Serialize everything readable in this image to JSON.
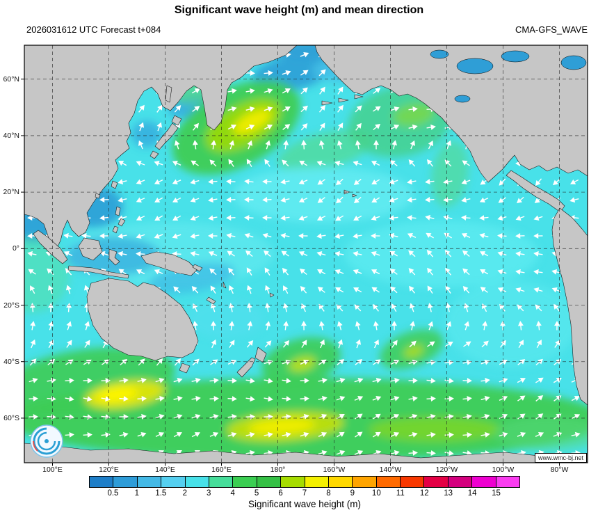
{
  "header": {
    "title": "Significant wave height (m) and mean direction",
    "forecast": "2026031612 UTC Forecast t+084",
    "model": "CMA-GFS_WAVE"
  },
  "map": {
    "watermark": "www.wmc-bj.net",
    "ocean_color": "#48E1E9",
    "land_color": "#C6C6C6",
    "coast_color": "#1a1a1a",
    "grid_color": "#222222",
    "arrow_color": "#ffffff",
    "arrow_spacing": 26,
    "lat_labels": [
      {
        "text": "60°N",
        "lat": 60
      },
      {
        "text": "40°N",
        "lat": 40
      },
      {
        "text": "20°N",
        "lat": 20
      },
      {
        "text": "0°",
        "lat": 0
      },
      {
        "text": "20°S",
        "lat": -20
      },
      {
        "text": "40°S",
        "lat": -40
      },
      {
        "text": "60°S",
        "lat": -60
      }
    ],
    "lon_labels": [
      {
        "text": "100°E",
        "lon": 100
      },
      {
        "text": "120°E",
        "lon": 120
      },
      {
        "text": "140°E",
        "lon": 140
      },
      {
        "text": "160°E",
        "lon": 160
      },
      {
        "text": "180°",
        "lon": 180
      },
      {
        "text": "160°W",
        "lon": 200
      },
      {
        "text": "140°W",
        "lon": 220
      },
      {
        "text": "120°W",
        "lon": 240
      },
      {
        "text": "100°W",
        "lon": 260
      },
      {
        "text": "80°W",
        "lon": 280
      }
    ],
    "field_blobs": [
      [
        420,
        6,
        95,
        13,
        0,
        "#2f9ed6",
        0.95
      ],
      [
        385,
        40,
        58,
        24,
        -10,
        "#2f9ed6",
        0.9
      ],
      [
        458,
        36,
        44,
        18,
        0,
        "#45c2e8",
        0.85
      ],
      [
        240,
        86,
        34,
        17,
        -15,
        "#35aadd",
        0.85
      ],
      [
        176,
        128,
        22,
        19,
        0,
        "#35aadd",
        0.8
      ],
      [
        100,
        232,
        42,
        30,
        0,
        "#2f9ed6",
        0.9
      ],
      [
        14,
        258,
        32,
        26,
        0,
        "#2f9ed6",
        0.9
      ],
      [
        305,
        118,
        100,
        56,
        -28,
        "#3ecc55",
        0.95
      ],
      [
        315,
        115,
        60,
        30,
        -28,
        "#a8dc00",
        0.8
      ],
      [
        328,
        110,
        30,
        13,
        -28,
        "#f4ee00",
        0.9
      ],
      [
        255,
        62,
        42,
        18,
        -20,
        "#57d878",
        0.65
      ],
      [
        432,
        152,
        70,
        26,
        -15,
        "#57d878",
        0.55
      ],
      [
        540,
        110,
        75,
        50,
        -10,
        "#44cf88",
        0.8
      ],
      [
        560,
        100,
        30,
        16,
        -10,
        "#a8dc00",
        0.45
      ],
      [
        612,
        185,
        26,
        48,
        8,
        "#57d878",
        0.5
      ],
      [
        430,
        215,
        130,
        40,
        0,
        "#63ebf1",
        0.85
      ],
      [
        210,
        300,
        150,
        46,
        0,
        "#5fe9ee",
        0.8
      ],
      [
        128,
        303,
        68,
        28,
        0,
        "#38b0de",
        0.8
      ],
      [
        240,
        335,
        64,
        20,
        -10,
        "#3db9e4",
        0.7
      ],
      [
        600,
        300,
        140,
        48,
        0,
        "#5debf0",
        0.75
      ],
      [
        700,
        400,
        95,
        62,
        0,
        "#58e8ee",
        0.7
      ],
      [
        290,
        393,
        55,
        28,
        0,
        "#52dfee",
        0.6
      ],
      [
        10,
        330,
        55,
        55,
        0,
        "#52dfa0",
        0.5
      ],
      [
        398,
        455,
        58,
        33,
        -15,
        "#3ecc55",
        0.9
      ],
      [
        400,
        458,
        20,
        10,
        -15,
        "#d8e400",
        0.75
      ],
      [
        557,
        437,
        48,
        25,
        -20,
        "#3ecc55",
        0.85
      ],
      [
        560,
        440,
        15,
        8,
        -20,
        "#cfe000",
        0.7
      ],
      [
        405,
        538,
        430,
        60,
        0,
        "#3ecc55",
        0.95
      ],
      [
        90,
        483,
        128,
        46,
        -8,
        "#3ecc55",
        0.9
      ],
      [
        145,
        502,
        58,
        19,
        -8,
        "#e8e600",
        0.9
      ],
      [
        133,
        502,
        30,
        10,
        -8,
        "#fff500",
        0.95
      ],
      [
        375,
        548,
        85,
        21,
        -4,
        "#cfe000",
        0.85
      ],
      [
        370,
        548,
        48,
        11,
        -4,
        "#f4ee00",
        0.9
      ],
      [
        590,
        552,
        95,
        18,
        0,
        "#a8dc00",
        0.5
      ],
      [
        755,
        558,
        80,
        24,
        0,
        "#57d878",
        0.55
      ]
    ],
    "land_paths": [
      "M0,0 L392,0 L376,14 L352,24 L330,30 L312,46 L298,54 L292,64 L289,88 L283,110 L273,122 L263,115 L259,90 L254,64 L244,58 L233,66 L221,82 L210,94 L199,88 L192,70 L183,60 L172,66 L163,80 L158,98 L150,112 L153,126 L147,138 L151,148 L140,157 L131,165 L135,177 L127,191 L113,207 L100,225 L90,241 L94,255 L88,269 L78,275 L68,265 L62,251 L56,265 L52,281 L46,293 L38,287 L33,271 L28,257 L18,249 L8,245 L0,243 Z",
      "M205,58 L212,61 L209,82 L203,79 Z",
      "M216,101 L226,106 L221,115 L212,110 Z",
      "M213,112 L221,119 L212,131 L202,141 L194,150 L188,145 L197,133 L207,121 Z",
      "M185,152 L193,156 L187,163 L181,159 Z",
      "M127,195 L134,198 L131,206 L125,203 Z",
      "M103,213 L109,215 L107,220 L102,218 Z",
      "M133,232 L138,234 L136,245 L131,243 Z",
      "M139,249 L145,252 L140,260 L135,257 Z",
      "M130,260 L135,262 L132,270 L127,267 Z",
      "M86,277 L107,281 L112,297 L99,309 L84,303 L78,289 Z",
      "M20,266 L34,276 L52,292 L62,308 L55,314 L38,300 L22,284 L13,271 Z",
      "M64,317 L98,320 L124,326 L150,330 L149,335 L122,331 L96,326 L63,323 Z",
      "M122,293 L133,297 L130,305 L137,311 L131,316 L122,307 Z",
      "M168,303 L190,297 L214,301 L236,311 L248,323 L240,331 L219,327 L195,319 L175,313 Z",
      "M96,342 L122,335 L150,339 L163,347 L171,341 L187,345 L205,357 L225,373 L237,391 L245,409 L250,425 L243,441 L227,449 L206,447 L188,453 L169,447 L149,445 L128,435 L111,421 L99,403 L92,381 L90,361 Z",
      "M227,457 L238,461 L233,471 L223,467 Z",
      "M336,434 L348,443 L343,456 L332,449 Z",
      "M332,451 L327,462 L313,477 L306,470 L319,457 L327,449 Z",
      "M418,0 L810,0 L810,188 L796,179 L782,184 L766,175 L752,181 L740,173 L726,179 L713,171 L705,158 L697,167 L688,178 L677,188 L667,197 L656,183 L648,168 L641,152 L632,140 L622,128 L611,117 L600,104 L588,94 L576,84 L564,76 L551,70 L539,73 L527,64 L513,58 L499,63 L486,71 L473,67 L461,56 L449,44 L439,33 L428,21 L421,10 Z",
      "M428,80 L443,83 L428,86 Z",
      "M452,76 L466,79 L452,82 Z",
      "M475,71 L487,74 L475,77 Z",
      "M700,180 L716,190 L734,202 L752,212 L768,222 L777,231 L771,240 L754,228 L736,218 L718,206 L703,194 L693,187 Z",
      "M770,234 L788,248 L802,264 L810,274 L810,517 L800,509 L794,489 L790,463 L788,431 L786,401 L781,371 L775,341 L767,311 L761,287 L759,265 L762,248 Z",
      "M0,572 L45,576 L95,582 L150,580 L215,587 L270,583 L330,589 L390,585 L450,591 L510,587 L570,593 L630,589 L690,585 L750,591 L810,587 L810,600 L0,600 Z",
      "M460,208 L468,211 L460,214 Z",
      "M472,214 L478,216 L472,218 Z",
      "M353,356 L359,359 L354,362 Z",
      "M265,362 L275,368 L272,372 L262,366 Z",
      "M245,315 L256,320 L252,325 L242,319 Z",
      "M286,340 L290,349 L286,347 Z"
    ],
    "water_patches": [
      [
        648,
        30,
        26,
        11
      ],
      [
        706,
        16,
        20,
        8
      ],
      [
        597,
        13,
        13,
        6
      ],
      [
        630,
        77,
        11,
        5
      ],
      [
        790,
        25,
        18,
        10
      ]
    ],
    "water_patch_color": "#2f9ed6"
  },
  "colorbar": {
    "label": "Significant wave height (m)",
    "tick_labels": [
      "0.5",
      "1",
      "1.5",
      "2",
      "3",
      "4",
      "5",
      "6",
      "7",
      "8",
      "9",
      "10",
      "11",
      "12",
      "13",
      "14",
      "15"
    ],
    "segment_colors": [
      "#1E7EC8",
      "#2E9CD8",
      "#44B9E6",
      "#55CFF0",
      "#48E1E9",
      "#46DD9A",
      "#3BCE52",
      "#35C045",
      "#A6DC00",
      "#F4F000",
      "#FFD800",
      "#FFA400",
      "#FF6A00",
      "#F83800",
      "#E40045",
      "#D4007E",
      "#EE00D0",
      "#FA3CF0"
    ]
  },
  "chart_data": {
    "type": "heatmap",
    "title": "Significant wave height (m) and mean direction",
    "units": "m",
    "scale_ticks": [
      0.5,
      1,
      1.5,
      2,
      3,
      4,
      5,
      6,
      7,
      8,
      9,
      10,
      11,
      12,
      13,
      14,
      15
    ],
    "lat_range": [
      "60°N",
      "60°S"
    ],
    "lon_range": [
      "100°E",
      "80°W"
    ]
  }
}
